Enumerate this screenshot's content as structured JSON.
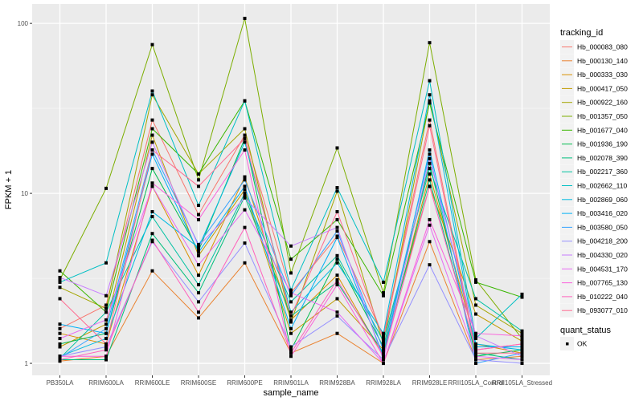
{
  "chart_data": {
    "type": "line",
    "title": "",
    "xlabel": "sample_name",
    "ylabel": "FPKM + 1",
    "y_scale": "log10",
    "ylim": [
      0.85,
      130
    ],
    "y_ticks": [
      1,
      10,
      100
    ],
    "y_tick_labels": [
      "1",
      "10",
      "100"
    ],
    "grid": true,
    "legend_position": "right",
    "categories": [
      "PB350LA",
      "RRIM600LA",
      "RRIM600LE",
      "RRIM600SE",
      "RRIM600PE",
      "RRIM901LA",
      "RRIM928BA",
      "RRIM928LA",
      "RRIM928LE",
      "RRII105LA_Control",
      "RRII105LA_Stressed"
    ],
    "legend": {
      "color_title": "tracking_id",
      "shape_title": "quant_status",
      "shape_entries": [
        {
          "label": "OK",
          "shape": "square",
          "color": "#000000"
        }
      ]
    },
    "series": [
      {
        "name": "Hb_000083_080",
        "color": "#F8766D",
        "values": [
          1.6,
          2.2,
          27,
          7.5,
          22,
          2.6,
          5.6,
          1.45,
          27,
          1.2,
          1.3
        ]
      },
      {
        "name": "Hb_000130_140",
        "color": "#EA8331",
        "values": [
          1.03,
          1.1,
          3.5,
          1.85,
          3.9,
          1.15,
          1.5,
          1.0,
          5.2,
          1.05,
          1.1
        ]
      },
      {
        "name": "Hb_000333_030",
        "color": "#D89000",
        "values": [
          1.5,
          1.3,
          11,
          3.3,
          12.5,
          1.8,
          3.3,
          1.1,
          13,
          1.3,
          1.15
        ]
      },
      {
        "name": "Hb_000417_050",
        "color": "#C09B00",
        "values": [
          1.25,
          1.7,
          22,
          4.3,
          10.5,
          1.5,
          2.4,
          1.2,
          11,
          1.95,
          1.35
        ]
      },
      {
        "name": "Hb_000922_160",
        "color": "#A3A500",
        "values": [
          2.8,
          2.1,
          38,
          13,
          24,
          1.75,
          10.3,
          1.3,
          35,
          2.2,
          1.5
        ]
      },
      {
        "name": "Hb_001357_050",
        "color": "#7CAE00",
        "values": [
          3.1,
          10.7,
          75,
          12,
          107,
          3.4,
          18.5,
          2.6,
          77,
          3.1,
          1.4
        ]
      },
      {
        "name": "Hb_001677_040",
        "color": "#39B600",
        "values": [
          3.5,
          2.0,
          24,
          13,
          35,
          4.1,
          7.0,
          2.5,
          34,
          3.0,
          2.45
        ]
      },
      {
        "name": "Hb_001936_190",
        "color": "#00BB4E",
        "values": [
          1.3,
          1.5,
          14,
          4.6,
          21,
          1.2,
          4.1,
          1.25,
          15,
          1.1,
          1.2
        ]
      },
      {
        "name": "Hb_002078_390",
        "color": "#00BF7D",
        "values": [
          1.05,
          1.05,
          5.8,
          2.6,
          9.6,
          1.9,
          3.0,
          1.15,
          12,
          1.15,
          1.05
        ]
      },
      {
        "name": "Hb_002217_360",
        "color": "#00C1A3",
        "values": [
          1.07,
          2.0,
          7.3,
          2.9,
          10,
          2.3,
          4.3,
          1.35,
          14,
          2.4,
          1.55
        ]
      },
      {
        "name": "Hb_002662_110",
        "color": "#00BFC4",
        "values": [
          3.0,
          3.9,
          40,
          8.5,
          35,
          2.7,
          10.8,
          3.0,
          46,
          1.4,
          2.55
        ]
      },
      {
        "name": "Hb_002869_060",
        "color": "#00BAE0",
        "values": [
          1.1,
          1.4,
          7.8,
          4.8,
          20,
          2.0,
          3.9,
          1.5,
          38,
          1.3,
          1.2
        ]
      },
      {
        "name": "Hb_003416_020",
        "color": "#00B0F6",
        "values": [
          1.7,
          1.5,
          17,
          4.5,
          11,
          1.6,
          5.5,
          1.1,
          18,
          1.25,
          1.25
        ]
      },
      {
        "name": "Hb_003580_050",
        "color": "#35A2FF",
        "values": [
          1.08,
          1.6,
          18,
          5.0,
          12,
          2.5,
          6.0,
          1.2,
          17,
          1.0,
          1.15
        ]
      },
      {
        "name": "Hb_004218_200",
        "color": "#9590FF",
        "values": [
          1.1,
          1.25,
          5.2,
          2.3,
          5.1,
          1.25,
          1.9,
          1.05,
          3.8,
          1.05,
          1.0
        ]
      },
      {
        "name": "Hb_004330_020",
        "color": "#C77CFF",
        "values": [
          3.2,
          2.5,
          20,
          4.9,
          9.4,
          4.9,
          6.3,
          1.05,
          16,
          1.45,
          1.1
        ]
      },
      {
        "name": "Hb_004531_170",
        "color": "#E76BF3",
        "values": [
          1.4,
          1.8,
          11,
          3.8,
          8.0,
          2.6,
          2.0,
          1.0,
          6.5,
          1.1,
          1.05
        ]
      },
      {
        "name": "Hb_007765_130",
        "color": "#FA62DB",
        "values": [
          1.1,
          1.1,
          11.5,
          7.0,
          18,
          1.1,
          2.9,
          1.0,
          7.0,
          1.5,
          1.45
        ]
      },
      {
        "name": "Hb_010222_040",
        "color": "#FF62BC",
        "values": [
          1.05,
          1.2,
          5.3,
          2.0,
          6.3,
          1.15,
          3.1,
          1.1,
          11,
          1.2,
          1.3
        ]
      },
      {
        "name": "Hb_093077_010",
        "color": "#FF6C91",
        "values": [
          2.4,
          1.3,
          18,
          11,
          21,
          1.9,
          7.8,
          1.4,
          25,
          1.15,
          1.15
        ]
      }
    ]
  }
}
